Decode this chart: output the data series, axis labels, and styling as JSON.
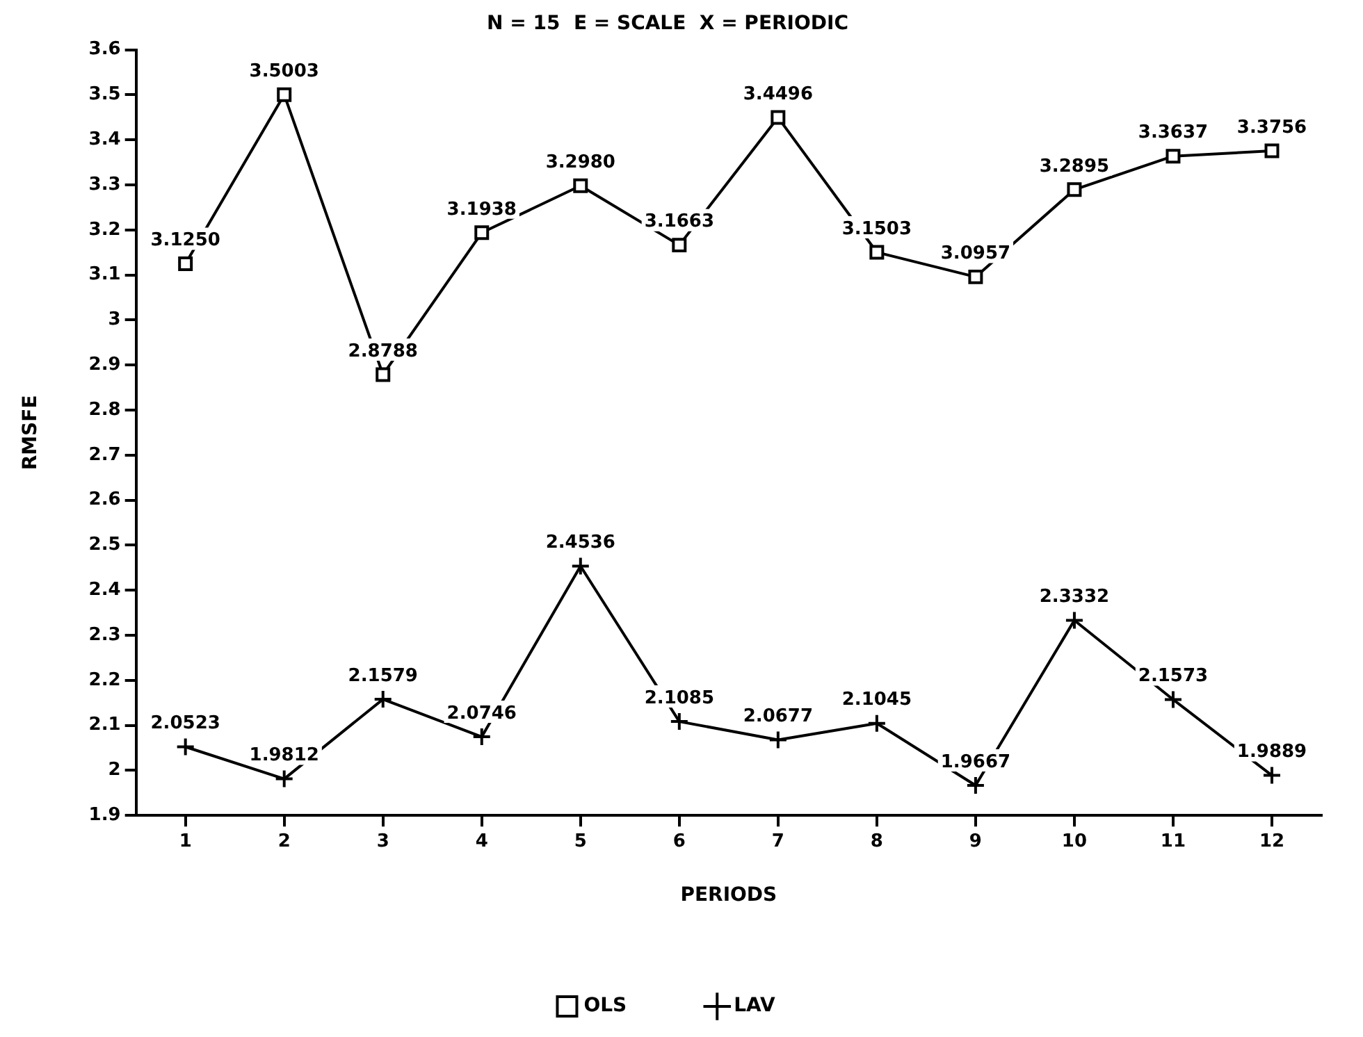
{
  "chart_data": {
    "type": "line",
    "title": "N = 15  E = SCALE  X = PERIODIC",
    "xlabel": "PERIODS",
    "ylabel": "RMSFE",
    "x": [
      1,
      2,
      3,
      4,
      5,
      6,
      7,
      8,
      9,
      10,
      11,
      12
    ],
    "xlim": [
      0.5,
      12.5
    ],
    "xticks": [
      1,
      2,
      3,
      4,
      5,
      6,
      7,
      8,
      9,
      10,
      11,
      12
    ],
    "series": [
      {
        "name": "OLS",
        "color": "#000000",
        "marker": "square",
        "values": [
          3.125,
          3.5003,
          2.8788,
          3.1938,
          3.298,
          3.1663,
          3.4496,
          3.1503,
          3.0957,
          3.2895,
          3.3637,
          3.3756
        ]
      },
      {
        "name": "LAV",
        "color": "#000000",
        "marker": "cross",
        "values": [
          2.0523,
          1.9812,
          2.1579,
          2.0746,
          2.4536,
          2.1085,
          2.0677,
          2.1045,
          1.9667,
          2.3332,
          2.1573,
          1.9889
        ]
      }
    ],
    "value_labels": [
      [
        "3.1250",
        "3.5003",
        "2.8788",
        "3.1938",
        "3.2980",
        "3.1663",
        "3.4496",
        "3.1503",
        "3.0957",
        "3.2895",
        "3.3637",
        "3.3756"
      ],
      [
        "2.0523",
        "1.9812",
        "2.1579",
        "2.0746",
        "2.4536",
        "2.1085",
        "2.0677",
        "2.1045",
        "1.9667",
        "2.3332",
        "2.1573",
        "1.9889"
      ]
    ],
    "ylim": [
      1.9,
      3.6
    ],
    "yticks": [
      1.9,
      2,
      2.1,
      2.2,
      2.3,
      2.4,
      2.5,
      2.6,
      2.7,
      2.8,
      2.9,
      3,
      3.1,
      3.2,
      3.3,
      3.4,
      3.5,
      3.6
    ],
    "grid": false,
    "legend": "bottom",
    "line_style": "solid"
  }
}
